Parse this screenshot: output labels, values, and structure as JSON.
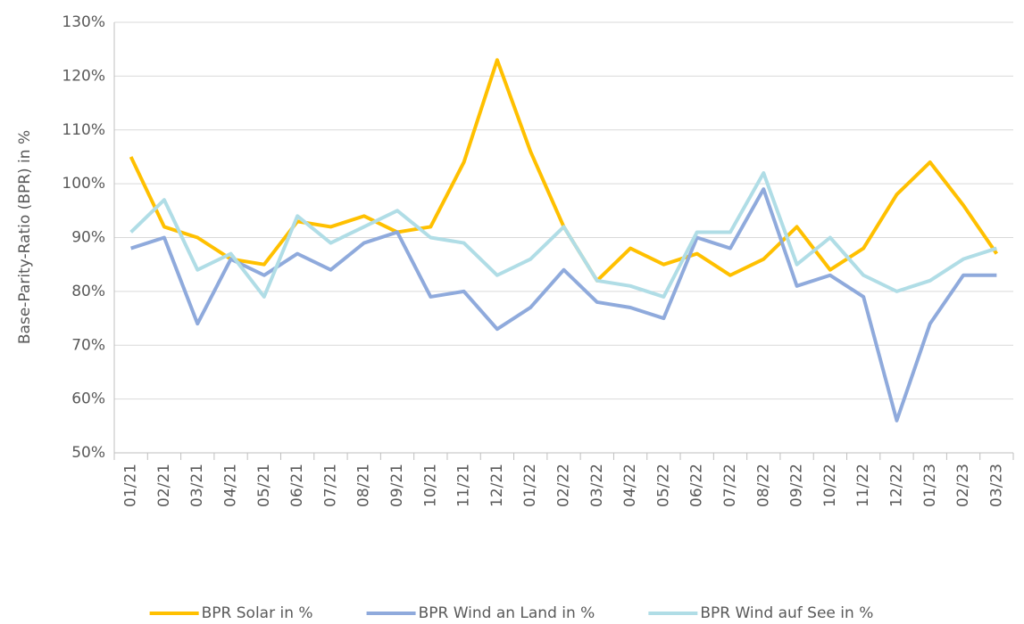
{
  "chart_data": {
    "type": "line",
    "y_label": "Base-Parity-Ratio (BPR) in %",
    "categories": [
      "01/21",
      "02/21",
      "03/21",
      "04/21",
      "05/21",
      "06/21",
      "07/21",
      "08/21",
      "09/21",
      "10/21",
      "11/21",
      "12/21",
      "01/22",
      "02/22",
      "03/22",
      "04/22",
      "05/22",
      "06/22",
      "07/22",
      "08/22",
      "09/22",
      "10/22",
      "11/22",
      "12/22",
      "01/23",
      "02/23",
      "03/23"
    ],
    "series": [
      {
        "name": "BPR Solar in %",
        "color": "#ffc000",
        "values": [
          105,
          92,
          90,
          86,
          85,
          93,
          92,
          94,
          91,
          92,
          104,
          123,
          106,
          92,
          82,
          88,
          85,
          87,
          83,
          86,
          92,
          84,
          88,
          98,
          104,
          96,
          87
        ]
      },
      {
        "name": "BPR Wind an Land in %",
        "color": "#8faadc",
        "values": [
          88,
          90,
          74,
          86,
          83,
          87,
          84,
          89,
          91,
          79,
          80,
          73,
          77,
          84,
          78,
          77,
          75,
          90,
          88,
          99,
          81,
          83,
          79,
          56,
          74,
          83,
          83
        ]
      },
      {
        "name": "BPR Wind auf See in %",
        "color": "#b0dde6",
        "values": [
          91,
          97,
          84,
          87,
          79,
          94,
          89,
          92,
          95,
          90,
          89,
          83,
          86,
          92,
          82,
          81,
          79,
          91,
          91,
          102,
          85,
          90,
          83,
          80,
          82,
          86,
          88
        ]
      }
    ],
    "ylim": [
      50,
      130
    ],
    "yticks": [
      {
        "value": 50,
        "label": "50%"
      },
      {
        "value": 60,
        "label": "60%"
      },
      {
        "value": 70,
        "label": "70%"
      },
      {
        "value": 80,
        "label": "80%"
      },
      {
        "value": 90,
        "label": "90%"
      },
      {
        "value": 100,
        "label": "100%"
      },
      {
        "value": 110,
        "label": "110%"
      },
      {
        "value": 120,
        "label": "120%"
      },
      {
        "value": 130,
        "label": "130%"
      }
    ],
    "grid": true,
    "legend": "bottom"
  }
}
